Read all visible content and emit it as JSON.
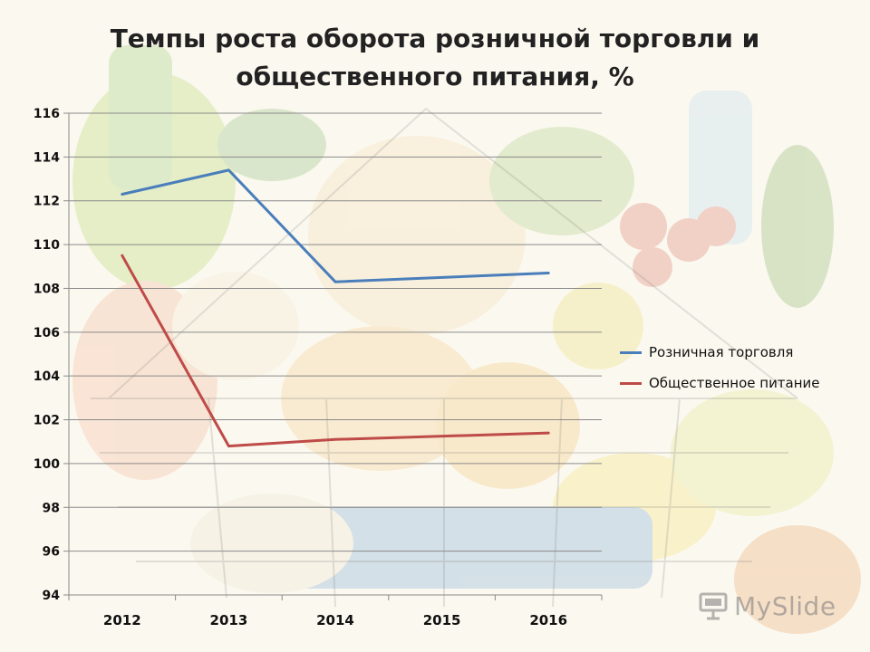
{
  "chart_data": {
    "type": "line",
    "title": "Темпы роста оборота розничной торговли и общественного питания, %",
    "title_lines": [
      "Темпы роста оборота розничной торговли и",
      "общественного питания, %"
    ],
    "categories": [
      "2012",
      "2013",
      "2014",
      "2015",
      "2016"
    ],
    "ylim": [
      94,
      116
    ],
    "yticks": [
      "116",
      "114",
      "112",
      "110",
      "108",
      "106",
      "104",
      "102",
      "100",
      "98",
      "96",
      "94"
    ],
    "grid": true,
    "legend_position": "right",
    "series": [
      {
        "name": "Розничная торговля",
        "color": "#4a7ebb",
        "points": [
          [
            2012,
            112.3
          ],
          [
            2013,
            113.4
          ],
          [
            2014,
            108.3
          ],
          [
            2016,
            108.7
          ]
        ]
      },
      {
        "name": "Общественное питание",
        "color": "#be4b48",
        "points": [
          [
            2012,
            109.5
          ],
          [
            2013,
            100.8
          ],
          [
            2014,
            101.1
          ],
          [
            2016,
            101.4
          ]
        ]
      }
    ]
  },
  "watermark": {
    "text": "MySlide",
    "icon": "projector-screen-icon"
  }
}
